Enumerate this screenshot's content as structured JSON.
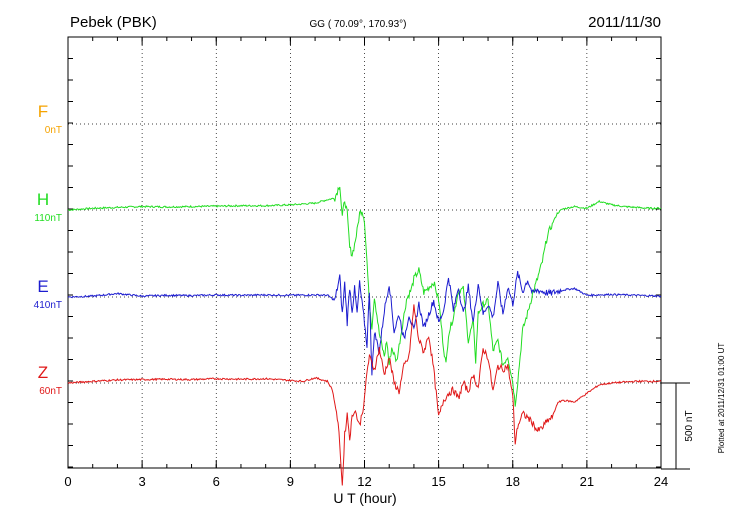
{
  "header": {
    "station": "Pebek (PBK)",
    "coords": "GG ( 70.09°, 170.93°)",
    "date": "2011/11/30"
  },
  "side_note": "Plotted at 2011/12/31 01:00 UT",
  "chart_data": {
    "type": "line",
    "xlabel": "U T (hour)",
    "xlim": [
      0,
      24
    ],
    "xticks": [
      "0",
      "3",
      "6",
      "9",
      "12",
      "15",
      "18",
      "21",
      "24"
    ],
    "scale_label": "500 nT",
    "scale_nT": 500,
    "grid": true,
    "series": [
      {
        "name": "F",
        "offset_label": "0nT",
        "color": "#f5a300",
        "points": []
      },
      {
        "name": "H",
        "offset_label": "110nT",
        "color": "#22dd22",
        "points": [
          [
            0,
            0
          ],
          [
            1,
            10
          ],
          [
            2,
            15
          ],
          [
            3,
            20
          ],
          [
            4,
            18
          ],
          [
            5,
            20
          ],
          [
            6,
            22
          ],
          [
            7,
            25
          ],
          [
            8,
            25
          ],
          [
            9,
            30
          ],
          [
            9.5,
            35
          ],
          [
            10,
            40
          ],
          [
            10.5,
            60
          ],
          [
            10.8,
            70
          ],
          [
            11,
            150
          ],
          [
            11.1,
            -40
          ],
          [
            11.2,
            60
          ],
          [
            11.3,
            -20
          ],
          [
            11.4,
            -220
          ],
          [
            11.5,
            -260
          ],
          [
            11.6,
            -200
          ],
          [
            11.7,
            -120
          ],
          [
            11.8,
            -20
          ],
          [
            11.9,
            0
          ],
          [
            12,
            -60
          ],
          [
            12.1,
            -300
          ],
          [
            12.2,
            -550
          ],
          [
            12.3,
            -680
          ],
          [
            12.4,
            -500
          ],
          [
            12.6,
            -720
          ],
          [
            12.8,
            -850
          ],
          [
            12.9,
            -760
          ],
          [
            13.0,
            -900
          ],
          [
            13.1,
            -800
          ],
          [
            13.3,
            -880
          ],
          [
            13.5,
            -700
          ],
          [
            13.7,
            -520
          ],
          [
            13.9,
            -460
          ],
          [
            14.0,
            -400
          ],
          [
            14.2,
            -350
          ],
          [
            14.4,
            -480
          ],
          [
            14.6,
            -450
          ],
          [
            14.8,
            -420
          ],
          [
            15.0,
            -520
          ],
          [
            15.2,
            -800
          ],
          [
            15.3,
            -900
          ],
          [
            15.4,
            -720
          ],
          [
            15.6,
            -620
          ],
          [
            15.8,
            -470
          ],
          [
            16.0,
            -460
          ],
          [
            16.2,
            -760
          ],
          [
            16.4,
            -650
          ],
          [
            16.5,
            -880
          ],
          [
            16.6,
            -600
          ],
          [
            16.8,
            -550
          ],
          [
            17.0,
            -530
          ],
          [
            17.2,
            -820
          ],
          [
            17.4,
            -760
          ],
          [
            17.6,
            -900
          ],
          [
            17.8,
            -850
          ],
          [
            18.0,
            -1000
          ],
          [
            18.1,
            -1130
          ],
          [
            18.2,
            -1000
          ],
          [
            18.4,
            -700
          ],
          [
            18.6,
            -600
          ],
          [
            18.8,
            -490
          ],
          [
            19.0,
            -400
          ],
          [
            19.2,
            -300
          ],
          [
            19.4,
            -150
          ],
          [
            19.6,
            -80
          ],
          [
            19.8,
            -20
          ],
          [
            20,
            5
          ],
          [
            20.5,
            20
          ],
          [
            21,
            10
          ],
          [
            21.5,
            50
          ],
          [
            22,
            30
          ],
          [
            22.5,
            20
          ],
          [
            23,
            15
          ],
          [
            23.5,
            10
          ],
          [
            24,
            10
          ]
        ]
      },
      {
        "name": "E",
        "offset_label": "410nT",
        "color": "#1c1ccf",
        "points": [
          [
            0,
            0
          ],
          [
            1,
            5
          ],
          [
            2,
            20
          ],
          [
            3,
            5
          ],
          [
            4,
            10
          ],
          [
            5,
            8
          ],
          [
            6,
            12
          ],
          [
            7,
            10
          ],
          [
            8,
            12
          ],
          [
            9,
            10
          ],
          [
            10,
            12
          ],
          [
            10.5,
            10
          ],
          [
            10.8,
            -20
          ],
          [
            11,
            120
          ],
          [
            11.1,
            -100
          ],
          [
            11.2,
            80
          ],
          [
            11.3,
            -150
          ],
          [
            11.4,
            60
          ],
          [
            11.5,
            -80
          ],
          [
            11.6,
            50
          ],
          [
            11.7,
            -100
          ],
          [
            11.8,
            80
          ],
          [
            12.0,
            -150
          ],
          [
            12.1,
            -280
          ],
          [
            12.2,
            40
          ],
          [
            12.3,
            -460
          ],
          [
            12.4,
            -200
          ],
          [
            12.6,
            -320
          ],
          [
            12.8,
            -80
          ],
          [
            13.0,
            80
          ],
          [
            13.2,
            -200
          ],
          [
            13.4,
            -100
          ],
          [
            13.6,
            -250
          ],
          [
            13.8,
            -100
          ],
          [
            14.0,
            -200
          ],
          [
            14.2,
            -40
          ],
          [
            14.4,
            -180
          ],
          [
            14.6,
            -100
          ],
          [
            14.8,
            -20
          ],
          [
            15.0,
            -150
          ],
          [
            15.2,
            -80
          ],
          [
            15.4,
            120
          ],
          [
            15.6,
            -80
          ],
          [
            15.8,
            60
          ],
          [
            16.0,
            -100
          ],
          [
            16.2,
            60
          ],
          [
            16.4,
            -150
          ],
          [
            16.6,
            80
          ],
          [
            16.8,
            -100
          ],
          [
            17.0,
            -40
          ],
          [
            17.2,
            -120
          ],
          [
            17.4,
            80
          ],
          [
            17.6,
            -100
          ],
          [
            17.8,
            60
          ],
          [
            18.0,
            -40
          ],
          [
            18.2,
            140
          ],
          [
            18.4,
            30
          ],
          [
            18.6,
            100
          ],
          [
            18.8,
            20
          ],
          [
            19.0,
            40
          ],
          [
            19.5,
            20
          ],
          [
            20,
            40
          ],
          [
            20.5,
            50
          ],
          [
            21,
            10
          ],
          [
            22,
            15
          ],
          [
            23,
            10
          ],
          [
            24,
            5
          ]
        ]
      },
      {
        "name": "Z",
        "offset_label": "60nT",
        "color": "#e01818",
        "points": [
          [
            0,
            0
          ],
          [
            1,
            10
          ],
          [
            2,
            18
          ],
          [
            3,
            20
          ],
          [
            4,
            22
          ],
          [
            5,
            20
          ],
          [
            6,
            25
          ],
          [
            7,
            22
          ],
          [
            8,
            25
          ],
          [
            9,
            15
          ],
          [
            9.5,
            10
          ],
          [
            10,
            30
          ],
          [
            10.5,
            10
          ],
          [
            10.7,
            -40
          ],
          [
            10.9,
            -200
          ],
          [
            11.0,
            -350
          ],
          [
            11.1,
            -600
          ],
          [
            11.2,
            -300
          ],
          [
            11.3,
            -180
          ],
          [
            11.4,
            -320
          ],
          [
            11.5,
            -200
          ],
          [
            11.6,
            -150
          ],
          [
            11.8,
            -250
          ],
          [
            12.0,
            -100
          ],
          [
            12.1,
            70
          ],
          [
            12.2,
            150
          ],
          [
            12.4,
            80
          ],
          [
            12.6,
            200
          ],
          [
            12.8,
            50
          ],
          [
            13.0,
            150
          ],
          [
            13.2,
            0
          ],
          [
            13.4,
            -50
          ],
          [
            13.6,
            100
          ],
          [
            13.8,
            150
          ],
          [
            14.0,
            450
          ],
          [
            14.2,
            250
          ],
          [
            14.4,
            180
          ],
          [
            14.6,
            280
          ],
          [
            14.8,
            80
          ],
          [
            15.0,
            -200
          ],
          [
            15.2,
            -100
          ],
          [
            15.4,
            -60
          ],
          [
            15.6,
            -40
          ],
          [
            15.8,
            -90
          ],
          [
            16.0,
            0
          ],
          [
            16.2,
            -50
          ],
          [
            16.4,
            50
          ],
          [
            16.6,
            -30
          ],
          [
            16.8,
            200
          ],
          [
            17.0,
            150
          ],
          [
            17.2,
            -50
          ],
          [
            17.4,
            100
          ],
          [
            17.6,
            80
          ],
          [
            17.8,
            100
          ],
          [
            18.0,
            -80
          ],
          [
            18.1,
            -350
          ],
          [
            18.2,
            -250
          ],
          [
            18.4,
            -180
          ],
          [
            18.6,
            -200
          ],
          [
            18.8,
            -230
          ],
          [
            19.0,
            -280
          ],
          [
            19.2,
            -260
          ],
          [
            19.4,
            -220
          ],
          [
            19.6,
            -200
          ],
          [
            19.8,
            -120
          ],
          [
            20,
            -100
          ],
          [
            20.5,
            -110
          ],
          [
            21,
            -60
          ],
          [
            21.5,
            -10
          ],
          [
            22,
            0
          ],
          [
            23,
            10
          ],
          [
            24,
            10
          ]
        ]
      }
    ]
  }
}
